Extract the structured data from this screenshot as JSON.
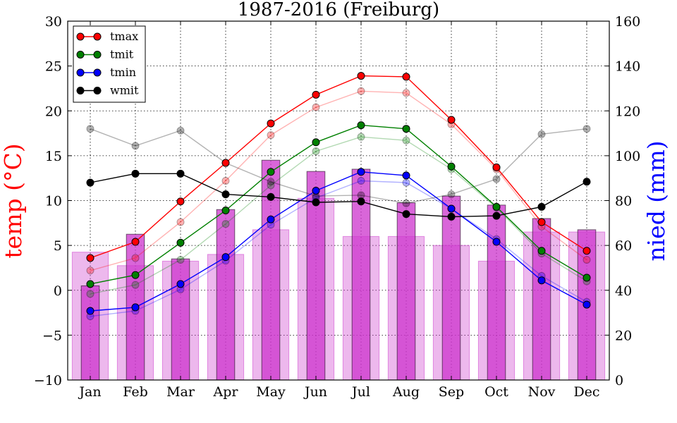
{
  "chart_data": {
    "type": "line+bar",
    "title": "1987-2016 (Freiburg)",
    "ylabel_left": "temp ($^\\circ$C)",
    "ylabel_left_text": "temp (°C)",
    "ylabel_right": "nied (mm)",
    "ylim_left": [
      -10,
      30
    ],
    "ylim_right": [
      0,
      160
    ],
    "grid": true,
    "legend_position": "top-left",
    "categories": [
      "Jan",
      "Feb",
      "Mar",
      "Apr",
      "May",
      "Jun",
      "Jul",
      "Aug",
      "Sep",
      "Oct",
      "Nov",
      "Dec"
    ],
    "yticks_left": [
      -10,
      -5,
      0,
      5,
      10,
      15,
      20,
      25,
      30
    ],
    "yticks_left_labels": [
      "−10",
      "−5",
      "0",
      "5",
      "10",
      "15",
      "20",
      "25",
      "30"
    ],
    "yticks_right": [
      0,
      20,
      40,
      60,
      80,
      100,
      120,
      140,
      160
    ],
    "yticks_right_labels": [
      "0",
      "20",
      "40",
      "60",
      "80",
      "100",
      "120",
      "140",
      "160"
    ],
    "series": [
      {
        "name": "tmax",
        "color": "#ff0000",
        "axis": "left",
        "values": [
          3.6,
          5.4,
          9.9,
          14.2,
          18.6,
          21.8,
          23.9,
          23.8,
          19.0,
          13.7,
          7.6,
          4.4
        ]
      },
      {
        "name": "tmit",
        "color": "#008000",
        "axis": "left",
        "values": [
          0.7,
          1.7,
          5.3,
          8.9,
          13.2,
          16.5,
          18.4,
          18.0,
          13.8,
          9.3,
          4.4,
          1.4
        ]
      },
      {
        "name": "tmin",
        "color": "#0000ff",
        "axis": "left",
        "values": [
          -2.3,
          -1.9,
          0.7,
          3.7,
          7.9,
          11.1,
          13.2,
          12.8,
          9.1,
          5.4,
          1.1,
          -1.6
        ]
      },
      {
        "name": "wmit",
        "color": "#000000",
        "axis": "left",
        "values": [
          12.0,
          13.0,
          13.0,
          10.7,
          10.4,
          9.8,
          9.9,
          8.5,
          8.2,
          8.3,
          9.3,
          12.1
        ]
      }
    ],
    "comparison_series": [
      {
        "name": "tmax (faded)",
        "color": "#ff0000",
        "axis": "left",
        "values": [
          2.2,
          3.6,
          7.6,
          12.2,
          17.3,
          20.4,
          22.2,
          22.0,
          18.5,
          13.5,
          7.1,
          3.4
        ]
      },
      {
        "name": "tmit (faded)",
        "color": "#008000",
        "axis": "left",
        "values": [
          -0.4,
          0.6,
          3.4,
          7.4,
          11.7,
          15.5,
          17.1,
          16.7,
          13.5,
          9.2,
          4.1,
          1.0
        ]
      },
      {
        "name": "tmin (faded)",
        "color": "#0000ff",
        "axis": "left",
        "values": [
          -2.9,
          -2.3,
          0.1,
          3.3,
          7.3,
          10.3,
          12.2,
          12.0,
          9.1,
          5.7,
          1.6,
          -1.3
        ]
      },
      {
        "name": "wmit (faded)",
        "color": "#000000",
        "axis": "left",
        "values": [
          18.0,
          16.1,
          17.8,
          14.2,
          12.1,
          10.5,
          10.6,
          9.7,
          10.7,
          12.4,
          17.4,
          18.0
        ]
      }
    ],
    "bars": [
      {
        "name": "nied",
        "color": "#cc33cc",
        "axis": "right",
        "values": [
          42,
          65,
          54,
          76,
          98,
          93,
          94,
          79,
          82,
          78,
          72,
          67
        ]
      }
    ],
    "comparison_bars": [
      {
        "name": "nied (faded)",
        "color": "#cc33cc",
        "axis": "right",
        "values": [
          57,
          51,
          53,
          56,
          67,
          81,
          64,
          64,
          60,
          53,
          66,
          66
        ]
      }
    ]
  }
}
